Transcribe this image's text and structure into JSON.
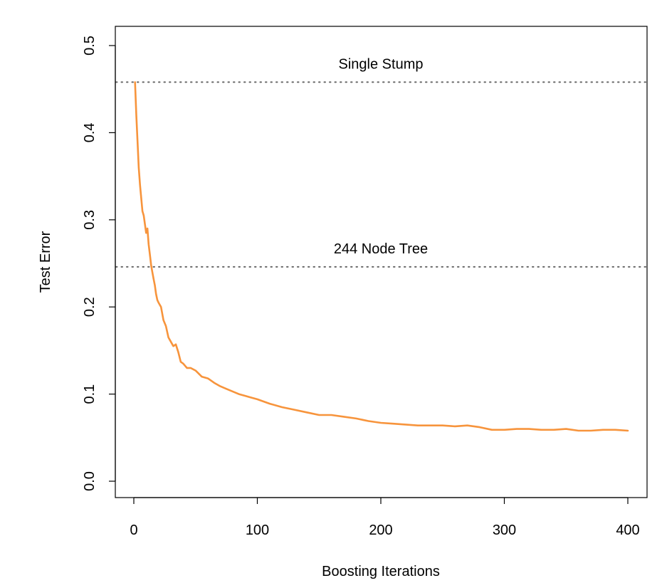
{
  "chart_data": {
    "type": "line",
    "title": "",
    "xlabel": "Boosting Iterations",
    "ylabel": "Test Error",
    "xlim": [
      0,
      400
    ],
    "ylim": [
      0,
      0.5
    ],
    "xticks": [
      0,
      100,
      200,
      300,
      400
    ],
    "xtick_labels": [
      "0",
      "100",
      "200",
      "300",
      "400"
    ],
    "yticks": [
      0,
      0.1,
      0.2,
      0.3,
      0.4,
      0.5
    ],
    "ytick_labels": [
      "0.0",
      "0.1",
      "0.2",
      "0.3",
      "0.4",
      "0.5"
    ],
    "grid": false,
    "legend": "none",
    "series": [
      {
        "color": "#f7943c",
        "x": [
          1,
          2,
          3,
          4,
          5,
          6,
          7,
          8,
          9,
          10,
          11,
          12,
          13,
          14,
          15,
          16,
          17,
          18,
          19,
          20,
          22,
          24,
          26,
          28,
          30,
          32,
          34,
          36,
          38,
          40,
          43,
          46,
          50,
          55,
          60,
          65,
          70,
          75,
          80,
          85,
          90,
          95,
          100,
          110,
          120,
          130,
          140,
          150,
          160,
          170,
          180,
          190,
          200,
          210,
          220,
          230,
          240,
          250,
          260,
          270,
          280,
          290,
          300,
          310,
          320,
          330,
          340,
          350,
          360,
          370,
          380,
          390,
          400
        ],
        "values": [
          0.458,
          0.42,
          0.39,
          0.36,
          0.34,
          0.325,
          0.31,
          0.305,
          0.295,
          0.285,
          0.29,
          0.272,
          0.26,
          0.248,
          0.24,
          0.232,
          0.225,
          0.215,
          0.208,
          0.205,
          0.2,
          0.185,
          0.178,
          0.165,
          0.16,
          0.155,
          0.157,
          0.148,
          0.137,
          0.135,
          0.13,
          0.13,
          0.127,
          0.12,
          0.118,
          0.113,
          0.109,
          0.106,
          0.103,
          0.1,
          0.098,
          0.096,
          0.094,
          0.089,
          0.085,
          0.082,
          0.079,
          0.076,
          0.076,
          0.074,
          0.072,
          0.069,
          0.067,
          0.066,
          0.065,
          0.064,
          0.064,
          0.064,
          0.063,
          0.064,
          0.062,
          0.059,
          0.059,
          0.06,
          0.06,
          0.059,
          0.059,
          0.06,
          0.058,
          0.058,
          0.059,
          0.059,
          0.058
        ]
      }
    ],
    "reference_lines": [
      {
        "y": 0.458,
        "label": "Single Stump",
        "label_x": 200,
        "style": "dotted",
        "color": "#666666"
      },
      {
        "y": 0.246,
        "label": "244 Node Tree",
        "label_x": 200,
        "style": "dotted",
        "color": "#666666"
      }
    ]
  }
}
